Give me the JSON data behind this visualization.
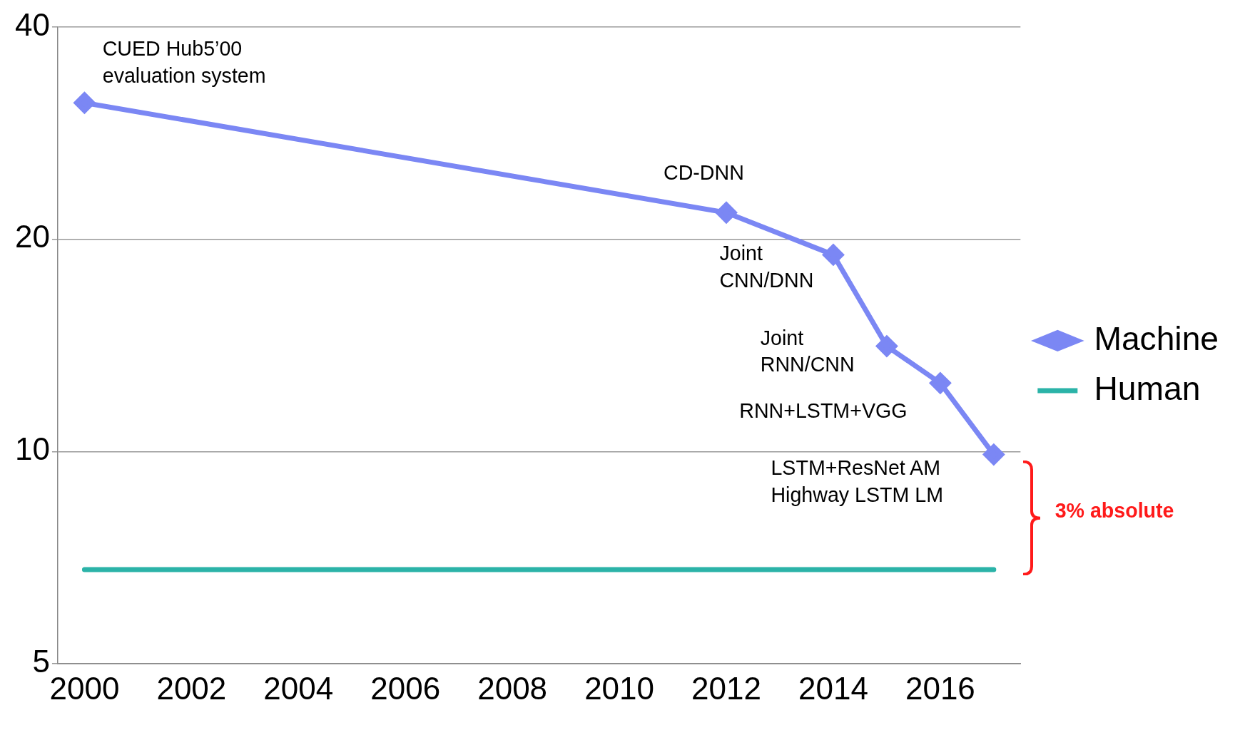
{
  "chart_data": {
    "type": "line",
    "log": "y",
    "x": [
      2000,
      2012,
      2014,
      2015,
      2016,
      2017
    ],
    "series": [
      {
        "name": "Machine",
        "color": "#7b87f4",
        "marker": "diamond",
        "values": [
          31.2,
          21.8,
          19.0,
          14.1,
          12.5,
          9.9
        ]
      },
      {
        "name": "Human",
        "color": "#2bb3a8",
        "marker": "none",
        "x": [
          2000,
          2017
        ],
        "values": [
          6.8,
          6.8
        ]
      }
    ],
    "xlim": [
      1999.5,
      2017.5
    ],
    "xticks": [
      2000,
      2002,
      2004,
      2006,
      2008,
      2010,
      2012,
      2014,
      2016
    ],
    "ylim": [
      5,
      40
    ],
    "yticks": [
      5,
      10,
      20,
      40
    ],
    "grid": "y",
    "legend": "right",
    "annotations": [
      {
        "text": "CUED Hub5’00\nevaluation system",
        "x": 2000,
        "y": 31.2
      },
      {
        "text": "CD-DNN",
        "x": 2012,
        "y": 21.8
      },
      {
        "text": "Joint\nCNN/DNN",
        "x": 2014,
        "y": 19.0
      },
      {
        "text": "Joint\nRNN/CNN",
        "x": 2015,
        "y": 14.1
      },
      {
        "text": "RNN+LSTM+VGG",
        "x": 2016,
        "y": 12.5
      },
      {
        "text": "LSTM+ResNet AM\nHighway LSTM LM",
        "x": 2017,
        "y": 9.9
      },
      "3% absolute"
    ]
  }
}
